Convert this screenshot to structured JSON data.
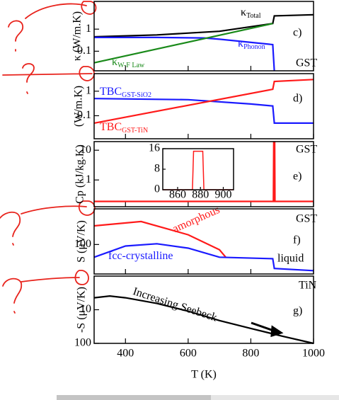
{
  "x_axis": {
    "xlim": [
      300,
      1000
    ],
    "xticks": [
      400,
      600,
      800,
      1000
    ],
    "label": "T (K)"
  },
  "chart_data": [
    {
      "type": "line",
      "log_y": true,
      "ylim": [
        0.013,
        18
      ],
      "yticks": [
        {
          "value": 0.1,
          "label": "0.1"
        },
        1
      ],
      "ylabel": "κ (W/m.K)",
      "panel_label": "c)",
      "tag": "GST",
      "series": [
        {
          "name": "κ",
          "name_sub": "Total",
          "color": "#000000",
          "x": [
            300,
            500,
            700,
            870,
            875,
            1000
          ],
          "values": [
            0.45,
            0.55,
            0.8,
            1.8,
            4,
            4.5
          ]
        },
        {
          "name": "κ",
          "name_sub": "Phonon",
          "color": "#1a1aff",
          "x": [
            300,
            500,
            650,
            700,
            870,
            875
          ],
          "values": [
            0.42,
            0.42,
            0.4,
            0.35,
            0.2,
            0.013
          ]
        },
        {
          "name": "κ",
          "name_sub": "W-F Law",
          "color": "#1a8a1a",
          "x": [
            300,
            870
          ],
          "values": [
            0.03,
            1.8
          ]
        }
      ]
    },
    {
      "type": "line",
      "log_y": true,
      "ylim": [
        0.0115,
        5.2
      ],
      "yticks": [
        {
          "value": 0.1,
          "label": "0.1"
        },
        1
      ],
      "ylabel": "(W/m.K)",
      "panel_label": "d)",
      "series": [
        {
          "name": "TBC",
          "name_sub": "GST-SiO2",
          "color": "#1a1aff",
          "x": [
            300,
            600,
            800,
            870,
            875,
            1000
          ],
          "values": [
            0.5,
            0.45,
            0.3,
            0.25,
            0.05,
            0.05
          ]
        },
        {
          "name": "TBC",
          "name_sub": "GST-TiN",
          "color": "#ff1a1a",
          "x": [
            300,
            870,
            875,
            1000
          ],
          "values": [
            0.05,
            1.2,
            2.5,
            3
          ]
        }
      ]
    },
    {
      "type": "line",
      "log_y": true,
      "ylim": [
        0.126,
        19.5
      ],
      "yticks": [
        1,
        10
      ],
      "ylabel": "Cp (kJ/kg.K)",
      "panel_label": "e)",
      "tag": "GST",
      "series": [
        {
          "color": "#ff1a1a",
          "x": [
            300,
            872,
            873,
            876,
            877,
            1000
          ],
          "values": [
            0.19,
            0.19,
            19,
            19,
            0.19,
            0.19
          ]
        }
      ]
    },
    {
      "type": "line",
      "inset": true,
      "xlim": [
        847,
        909
      ],
      "xticks": [
        860,
        880,
        900
      ],
      "ylim": [
        0,
        16
      ],
      "yticks": [
        0,
        8,
        16
      ],
      "series": [
        {
          "color": "#ff1a1a",
          "x": [
            847,
            873,
            874,
            882,
            883,
            909
          ],
          "values": [
            0,
            0,
            15,
            15,
            0,
            0
          ]
        }
      ]
    },
    {
      "type": "line",
      "log_y": true,
      "ylim": [
        20,
        700
      ],
      "yticks": [
        100
      ],
      "ylabel": "S (μV/K)",
      "panel_label": "f)",
      "tag": "GST",
      "annotations": [
        "liquid"
      ],
      "series": [
        {
          "name": "amorphous",
          "color": "#ff1a1a",
          "x": [
            300,
            450,
            600,
            700,
            720
          ],
          "values": [
            277,
            350,
            170,
            75,
            50
          ]
        },
        {
          "name": "fcc-crystalline",
          "color": "#1a1aff",
          "x": [
            300,
            400,
            500,
            600,
            700,
            870,
            875,
            1000
          ],
          "values": [
            50,
            92,
            104,
            82,
            50,
            46,
            27,
            24
          ]
        }
      ]
    },
    {
      "type": "line",
      "log_y": true,
      "ylim": [
        100,
        1
      ],
      "yticks": [
        10,
        100
      ],
      "ylabel": "-S (μV/K)",
      "panel_label": "g)",
      "tag": "TiN",
      "annotations": [
        "Increasing Seebeck"
      ],
      "series": [
        {
          "color": "#000000",
          "x": [
            300,
            350,
            400,
            500,
            600,
            700,
            800,
            900,
            1000
          ],
          "values": [
            4.4,
            3.9,
            4.4,
            6.5,
            11,
            21,
            36,
            61,
            100
          ]
        }
      ]
    }
  ]
}
